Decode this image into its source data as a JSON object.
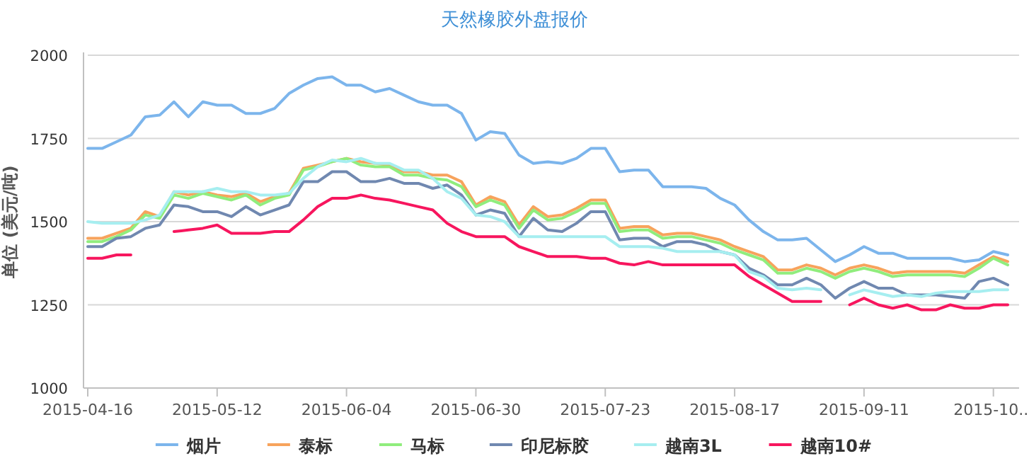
{
  "chart_data": {
    "type": "line",
    "title": "天然橡胶外盘报价",
    "ylabel": "单位 (美元/吨)",
    "categories": [
      "2015-04-16",
      null,
      null,
      null,
      null,
      null,
      null,
      null,
      null,
      "2015-05-12",
      null,
      null,
      null,
      null,
      null,
      null,
      null,
      null,
      "2015-06-04",
      null,
      null,
      null,
      null,
      null,
      null,
      null,
      null,
      "2015-06-30",
      null,
      null,
      null,
      null,
      null,
      null,
      null,
      null,
      "2015-07-23",
      null,
      null,
      null,
      null,
      null,
      null,
      null,
      null,
      "2015-08-17",
      null,
      null,
      null,
      null,
      null,
      null,
      null,
      null,
      "2015-09-11",
      null,
      null,
      null,
      null,
      null,
      null,
      null,
      null,
      "2015-10...",
      null
    ],
    "ylim": [
      1000,
      2000
    ],
    "yticks": [
      1000,
      1250,
      1500,
      1750,
      2000
    ],
    "grid": "y",
    "legend": "bottom",
    "marker": "none",
    "line_style": "solid",
    "series": [
      {
        "name": "烟片",
        "color": "#7cb5ec",
        "values": [
          1720,
          1720,
          1740,
          1760,
          1815,
          1820,
          1860,
          1815,
          1860,
          1850,
          1850,
          1825,
          1825,
          1840,
          1885,
          1910,
          1930,
          1935,
          1910,
          1910,
          1890,
          1900,
          1880,
          1860,
          1850,
          1850,
          1825,
          1745,
          1770,
          1765,
          1700,
          1675,
          1680,
          1675,
          1690,
          1720,
          1720,
          1650,
          1655,
          1655,
          1605,
          1605,
          1605,
          1600,
          1570,
          1550,
          1505,
          1470,
          1445,
          1445,
          1450,
          1415,
          1380,
          1400,
          1425,
          1405,
          1405,
          1390,
          1390,
          1390,
          1390,
          1380,
          1385,
          1410,
          1400
        ]
      },
      {
        "name": "泰标",
        "color": "#f7a35c",
        "values": [
          1450,
          1450,
          1465,
          1480,
          1530,
          1515,
          1590,
          1580,
          1590,
          1580,
          1575,
          1585,
          1560,
          1575,
          1585,
          1660,
          1670,
          1680,
          1690,
          1680,
          1675,
          1670,
          1650,
          1650,
          1640,
          1640,
          1620,
          1550,
          1575,
          1560,
          1490,
          1545,
          1515,
          1520,
          1540,
          1565,
          1565,
          1480,
          1485,
          1485,
          1460,
          1465,
          1465,
          1455,
          1445,
          1425,
          1410,
          1395,
          1355,
          1355,
          1370,
          1360,
          1340,
          1360,
          1370,
          1360,
          1345,
          1350,
          1350,
          1350,
          1350,
          1345,
          1370,
          1395,
          1380
        ]
      },
      {
        "name": "马标",
        "color": "#90ed7d",
        "values": [
          1440,
          1440,
          1455,
          1475,
          1520,
          1510,
          1580,
          1570,
          1585,
          1575,
          1565,
          1580,
          1550,
          1570,
          1580,
          1655,
          1665,
          1680,
          1690,
          1670,
          1665,
          1665,
          1640,
          1640,
          1630,
          1625,
          1605,
          1545,
          1565,
          1550,
          1480,
          1535,
          1505,
          1510,
          1530,
          1555,
          1555,
          1470,
          1475,
          1475,
          1450,
          1455,
          1455,
          1445,
          1435,
          1415,
          1400,
          1385,
          1345,
          1345,
          1360,
          1350,
          1330,
          1350,
          1360,
          1350,
          1335,
          1340,
          1340,
          1340,
          1340,
          1335,
          1360,
          1390,
          1370
        ]
      },
      {
        "name": "印尼标胶",
        "color": "#7088b0",
        "values": [
          1425,
          1425,
          1450,
          1455,
          1480,
          1490,
          1550,
          1545,
          1530,
          1530,
          1515,
          1545,
          1520,
          1535,
          1550,
          1620,
          1620,
          1650,
          1650,
          1620,
          1620,
          1630,
          1615,
          1615,
          1600,
          1610,
          1580,
          1520,
          1535,
          1525,
          1455,
          1510,
          1475,
          1470,
          1495,
          1530,
          1530,
          1445,
          1450,
          1450,
          1425,
          1440,
          1440,
          1430,
          1410,
          1400,
          1360,
          1340,
          1310,
          1310,
          1330,
          1310,
          1270,
          1300,
          1320,
          1300,
          1300,
          1280,
          1280,
          1280,
          1275,
          1270,
          1320,
          1330,
          1310
        ]
      },
      {
        "name": "越南3L",
        "color": "#a6eef0",
        "values": [
          1500,
          1495,
          1495,
          1495,
          1505,
          1520,
          1590,
          1590,
          1590,
          1600,
          1590,
          1590,
          1580,
          1580,
          1585,
          1630,
          1665,
          1685,
          1680,
          1690,
          1675,
          1675,
          1655,
          1655,
          1630,
          1590,
          1570,
          1520,
          1515,
          1500,
          1455,
          1455,
          1455,
          1455,
          1455,
          1455,
          1455,
          1425,
          1425,
          1425,
          1420,
          1410,
          1410,
          1410,
          1410,
          1400,
          1350,
          1335,
          1300,
          1295,
          1300,
          1295,
          null,
          1280,
          1295,
          1285,
          1275,
          1280,
          1275,
          1285,
          1290,
          1290,
          1290,
          1295,
          1295
        ]
      },
      {
        "name": "越南10#",
        "color": "#f7165e",
        "values": [
          1390,
          1390,
          1400,
          1400,
          null,
          null,
          1470,
          1475,
          1480,
          1490,
          1465,
          1465,
          1465,
          1470,
          1470,
          1505,
          1545,
          1570,
          1570,
          1580,
          1570,
          1565,
          1555,
          1545,
          1535,
          1495,
          1470,
          1455,
          1455,
          1455,
          1425,
          1410,
          1395,
          1395,
          1395,
          1390,
          1390,
          1375,
          1370,
          1380,
          1370,
          1370,
          1370,
          1370,
          1370,
          1370,
          1335,
          1310,
          1285,
          1260,
          1260,
          1260,
          null,
          1250,
          1270,
          1250,
          1240,
          1250,
          1235,
          1235,
          1250,
          1240,
          1240,
          1250,
          1250
        ]
      }
    ]
  }
}
